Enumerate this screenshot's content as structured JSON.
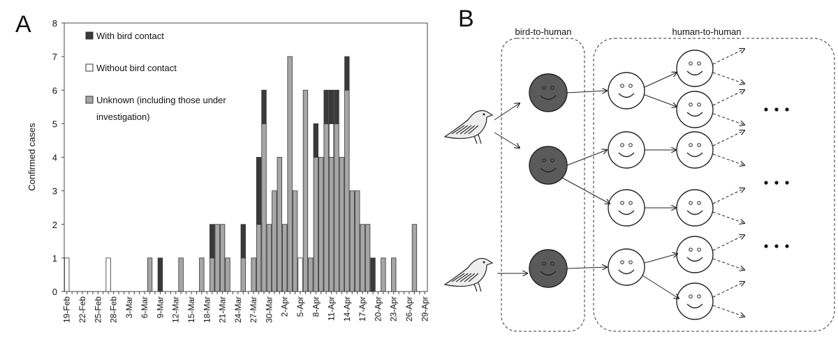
{
  "chart_data": {
    "type": "stacked-bar",
    "panel_label": "A",
    "ylabel": "Confirmed cases",
    "categories": [
      "19-Feb",
      null,
      null,
      "22-Feb",
      null,
      null,
      "25-Feb",
      null,
      null,
      "28-Feb",
      null,
      null,
      "3-Mar",
      null,
      null,
      "6-Mar",
      null,
      null,
      "9-Mar",
      null,
      null,
      "12-Mar",
      null,
      null,
      "15-Mar",
      null,
      null,
      "18-Mar",
      null,
      null,
      "21-Mar",
      null,
      null,
      "24-Mar",
      null,
      null,
      "27-Mar",
      null,
      null,
      "30-Mar",
      null,
      null,
      "2-Apr",
      null,
      null,
      "5-Apr",
      null,
      null,
      "8-Apr",
      null,
      null,
      "11-Apr",
      null,
      null,
      "14-Apr",
      null,
      null,
      "17-Apr",
      null,
      null,
      "20-Apr",
      null,
      null,
      "23-Apr",
      null,
      null,
      "26-Apr",
      null,
      null,
      "29-Apr"
    ],
    "series": [
      {
        "name": "Unknown (including those under investigation)",
        "color": "#a6a6a6",
        "values": [
          0,
          0,
          0,
          0,
          0,
          0,
          0,
          0,
          0,
          0,
          0,
          0,
          0,
          0,
          0,
          0,
          1,
          0,
          0,
          0,
          0,
          0,
          1,
          0,
          0,
          0,
          1,
          0,
          1,
          2,
          2,
          1,
          0,
          0,
          1,
          0,
          1,
          2,
          5,
          2,
          3,
          4,
          2,
          7,
          3,
          0,
          6,
          1,
          4,
          4,
          5,
          4,
          5,
          4,
          6,
          3,
          3,
          2,
          2,
          0,
          0,
          1,
          0,
          1,
          0,
          0,
          0,
          2,
          0,
          0
        ]
      },
      {
        "name": "Without bird contact",
        "color": "#ffffff",
        "values": [
          1,
          0,
          0,
          0,
          0,
          0,
          0,
          0,
          1,
          0,
          0,
          0,
          0,
          0,
          0,
          0,
          0,
          0,
          0,
          0,
          0,
          0,
          0,
          0,
          0,
          0,
          0,
          0,
          0,
          0,
          0,
          0,
          0,
          0,
          0,
          0,
          0,
          0,
          0,
          0,
          0,
          0,
          0,
          0,
          0,
          1,
          0,
          0,
          0,
          0,
          0,
          1,
          0,
          0,
          0,
          0,
          0,
          0,
          0,
          0,
          0,
          0,
          0,
          0,
          0,
          0,
          0,
          0,
          0,
          0
        ]
      },
      {
        "name": "With bird contact",
        "color": "#3a3a3a",
        "values": [
          0,
          0,
          0,
          0,
          0,
          0,
          0,
          0,
          0,
          0,
          0,
          0,
          0,
          0,
          0,
          0,
          0,
          0,
          1,
          0,
          0,
          0,
          0,
          0,
          0,
          0,
          0,
          0,
          1,
          0,
          0,
          0,
          0,
          0,
          1,
          0,
          0,
          2,
          1,
          0,
          0,
          0,
          0,
          0,
          0,
          0,
          0,
          0,
          1,
          0,
          1,
          1,
          1,
          0,
          1,
          0,
          0,
          0,
          0,
          1,
          0,
          0,
          0,
          0,
          0,
          0,
          0,
          0,
          0,
          0
        ]
      }
    ],
    "legend_order": [
      2,
      1,
      0
    ],
    "ylim": [
      0,
      8
    ],
    "yticks": [
      0,
      1,
      2,
      3,
      4,
      5,
      6,
      7,
      8
    ]
  },
  "diagram": {
    "panel_label": "B",
    "groups": [
      "bird-to-human",
      "human-to-human"
    ]
  }
}
